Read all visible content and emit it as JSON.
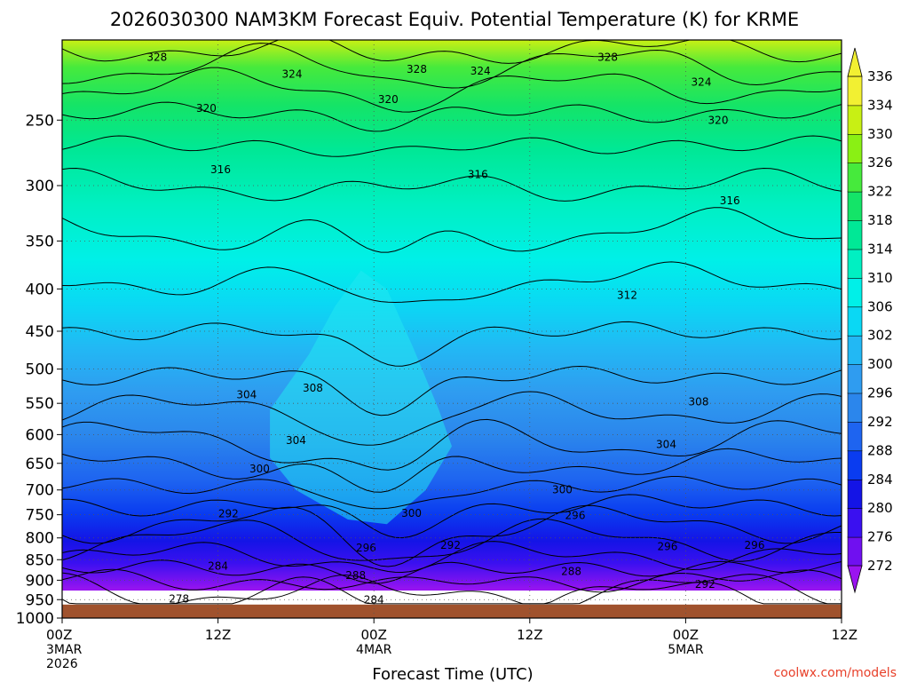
{
  "chart_data": {
    "type": "heatmap",
    "title": "2026030300 NAM3KM Forecast Equiv. Potential Temperature (K) for KRME",
    "xlabel": "Forecast Time (UTC)",
    "ylabel": "",
    "credit": "coolwx.com/models",
    "y_axis": {
      "unit": "hPa",
      "scale": "log",
      "inverted": true,
      "range": [
        200,
        1000
      ],
      "ticks": [
        250,
        300,
        350,
        400,
        450,
        500,
        550,
        600,
        650,
        700,
        750,
        800,
        850,
        900,
        950,
        1000
      ]
    },
    "x_axis": {
      "range_hours": [
        0,
        60
      ],
      "ticks": [
        {
          "hour": 0,
          "line1": "00Z",
          "line2": "3MAR",
          "line3": "2026"
        },
        {
          "hour": 12,
          "line1": "12Z",
          "line2": "",
          "line3": ""
        },
        {
          "hour": 24,
          "line1": "00Z",
          "line2": "4MAR",
          "line3": ""
        },
        {
          "hour": 36,
          "line1": "12Z",
          "line2": "",
          "line3": ""
        },
        {
          "hour": 48,
          "line1": "00Z",
          "line2": "5MAR",
          "line3": ""
        },
        {
          "hour": 60,
          "line1": "12Z",
          "line2": "",
          "line3": ""
        }
      ]
    },
    "grid": true,
    "colorbar": {
      "placement": "right",
      "levels": [
        272,
        276,
        280,
        284,
        288,
        292,
        296,
        300,
        302,
        306,
        310,
        314,
        318,
        322,
        326,
        330,
        334,
        336
      ],
      "colors": [
        "#9b14f0",
        "#7010f0",
        "#3a10f0",
        "#1414e6",
        "#0a3cf0",
        "#1e64f0",
        "#2b86ec",
        "#2f9cf0",
        "#22b8f4",
        "#0ad8f4",
        "#00f0e8",
        "#00f0c2",
        "#00e896",
        "#14e468",
        "#46ea3c",
        "#8af014",
        "#c8f014",
        "#f2f032"
      ]
    },
    "surface_pressure_hpa": 963,
    "contour_labels": [
      {
        "hour": 7.3,
        "p": 210,
        "text": "328"
      },
      {
        "hour": 17.7,
        "p": 220,
        "text": "324"
      },
      {
        "hour": 27.3,
        "p": 217,
        "text": "328"
      },
      {
        "hour": 32.2,
        "p": 218,
        "text": "324"
      },
      {
        "hour": 42.0,
        "p": 210,
        "text": "328"
      },
      {
        "hour": 49.2,
        "p": 225,
        "text": "324"
      },
      {
        "hour": 11.1,
        "p": 242,
        "text": "320"
      },
      {
        "hour": 25.1,
        "p": 236,
        "text": "320"
      },
      {
        "hour": 50.5,
        "p": 250,
        "text": "320"
      },
      {
        "hour": 12.2,
        "p": 287,
        "text": "316"
      },
      {
        "hour": 32.0,
        "p": 291,
        "text": "316"
      },
      {
        "hour": 51.4,
        "p": 313,
        "text": "316"
      },
      {
        "hour": 43.5,
        "p": 407,
        "text": "312"
      },
      {
        "hour": 14.2,
        "p": 537,
        "text": "304"
      },
      {
        "hour": 19.3,
        "p": 527,
        "text": "308"
      },
      {
        "hour": 49.0,
        "p": 548,
        "text": "308"
      },
      {
        "hour": 18.0,
        "p": 610,
        "text": "304"
      },
      {
        "hour": 46.5,
        "p": 617,
        "text": "304"
      },
      {
        "hour": 15.2,
        "p": 660,
        "text": "300"
      },
      {
        "hour": 38.5,
        "p": 700,
        "text": "300"
      },
      {
        "hour": 12.8,
        "p": 748,
        "text": "292"
      },
      {
        "hour": 26.9,
        "p": 747,
        "text": "300"
      },
      {
        "hour": 39.5,
        "p": 752,
        "text": "296"
      },
      {
        "hour": 23.4,
        "p": 823,
        "text": "296"
      },
      {
        "hour": 29.9,
        "p": 817,
        "text": "292"
      },
      {
        "hour": 46.6,
        "p": 820,
        "text": "296"
      },
      {
        "hour": 53.3,
        "p": 817,
        "text": "296"
      },
      {
        "hour": 12.0,
        "p": 865,
        "text": "284"
      },
      {
        "hour": 22.6,
        "p": 888,
        "text": "288"
      },
      {
        "hour": 39.2,
        "p": 878,
        "text": "288"
      },
      {
        "hour": 49.5,
        "p": 910,
        "text": "292"
      },
      {
        "hour": 9.0,
        "p": 948,
        "text": "278"
      },
      {
        "hour": 24.0,
        "p": 950,
        "text": "284"
      }
    ]
  }
}
